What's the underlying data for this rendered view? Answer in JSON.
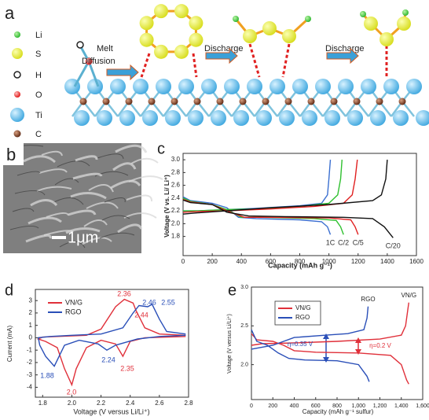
{
  "panel_labels": [
    "a",
    "b",
    "c",
    "d",
    "e"
  ],
  "schematic": {
    "legend": [
      "Li",
      "S",
      "H",
      "O",
      "Ti",
      "C"
    ],
    "steps": [
      "Melt",
      "Diffusion",
      "Discharge",
      "Discharge"
    ]
  },
  "sem_image": {
    "scale_bar": "1μm"
  },
  "chart_data": [
    {
      "type": "line",
      "ylabel": "Voltage (V vs. Li/ Li⁺)",
      "xlabel": "Capacity (mAh g⁻¹)",
      "xlim": [
        0,
        1600
      ],
      "ylim": [
        1.5,
        3.1
      ],
      "xticks": [
        0,
        200,
        400,
        600,
        800,
        1000,
        1200,
        1400,
        1600
      ],
      "yticks": [
        1.8,
        {
          "value": 2,
          "label": "2.0"
        },
        2.2,
        2.4,
        2.6,
        2.8,
        {
          "value": 3,
          "label": "3.0"
        }
      ],
      "inline_labels": true,
      "series": [
        {
          "name": "1C",
          "color": "#3a6fd0",
          "x": [
            0,
            50,
            200,
            300,
            380,
            500,
            800,
            950,
            990,
            1010,
            null,
            0,
            100,
            300,
            500,
            800,
            950,
            990,
            1000,
            1010
          ],
          "values": [
            2.42,
            2.36,
            2.32,
            2.25,
            2.1,
            2.08,
            2.06,
            2.03,
            1.95,
            1.83,
            null,
            2.2,
            2.2,
            2.22,
            2.24,
            2.28,
            2.32,
            2.45,
            2.7,
            3.0
          ]
        },
        {
          "name": "C/2",
          "color": "#2fc02f",
          "x": [
            0,
            50,
            200,
            300,
            400,
            550,
            900,
            1050,
            1080,
            1100,
            null,
            0,
            100,
            300,
            500,
            800,
            1000,
            1060,
            1080,
            1090
          ],
          "values": [
            2.4,
            2.35,
            2.3,
            2.22,
            2.1,
            2.1,
            2.08,
            2.05,
            1.95,
            1.83,
            null,
            2.2,
            2.2,
            2.22,
            2.23,
            2.27,
            2.32,
            2.45,
            2.7,
            3.0
          ]
        },
        {
          "name": "C/5",
          "color": "#e02020",
          "x": [
            0,
            50,
            200,
            300,
            420,
            600,
            1000,
            1150,
            1180,
            1200,
            null,
            0,
            100,
            300,
            600,
            900,
            1100,
            1160,
            1180,
            1195
          ],
          "values": [
            2.38,
            2.34,
            2.3,
            2.2,
            2.1,
            2.1,
            2.09,
            2.06,
            1.95,
            1.83,
            null,
            2.18,
            2.19,
            2.2,
            2.23,
            2.27,
            2.32,
            2.45,
            2.7,
            3.0
          ]
        },
        {
          "name": "C/20",
          "color": "#111111",
          "x": [
            0,
            50,
            200,
            300,
            450,
            700,
            1100,
            1300,
            1380,
            1440,
            null,
            0,
            100,
            300,
            600,
            1000,
            1300,
            1360,
            1390,
            1400
          ],
          "values": [
            2.37,
            2.33,
            2.3,
            2.18,
            2.12,
            2.11,
            2.1,
            2.08,
            1.95,
            1.78,
            null,
            2.15,
            2.17,
            2.2,
            2.25,
            2.3,
            2.36,
            2.45,
            2.7,
            3.0
          ]
        }
      ]
    },
    {
      "type": "line",
      "ylabel": "Current (mA)",
      "xlabel": "Voltage (V versus Li/Li⁺)",
      "xlim": [
        1.75,
        2.8
      ],
      "ylim": [
        -4.8,
        3.9
      ],
      "xticks": [
        1.8,
        {
          "value": 2,
          "label": "2.0"
        },
        2.2,
        2.4,
        2.6,
        2.8
      ],
      "yticks": [
        -4,
        -3,
        -2,
        -1,
        0,
        1,
        2,
        3
      ],
      "legend": "upper left",
      "series": [
        {
          "name": "VN/G",
          "color": "#e0303a",
          "x": [
            2.78,
            2.5,
            2.4,
            2.35,
            2.3,
            2.2,
            2.1,
            2.03,
            2.0,
            1.95,
            1.9,
            1.82,
            1.77,
            1.8,
            1.9,
            2.1,
            2.2,
            2.3,
            2.36,
            2.42,
            2.44,
            2.5,
            2.6,
            2.78
          ],
          "values": [
            0.1,
            0.0,
            -0.3,
            -1.5,
            -0.5,
            -0.2,
            -0.8,
            -2.5,
            -3.8,
            -2.5,
            -0.8,
            -0.3,
            -0.1,
            0.05,
            0.1,
            0.2,
            0.7,
            2.5,
            3.1,
            2.8,
            2.2,
            0.8,
            0.3,
            0.2
          ]
        },
        {
          "name": "RGO",
          "color": "#2a4fb8",
          "x": [
            2.78,
            2.6,
            2.45,
            2.3,
            2.24,
            2.18,
            2.05,
            1.95,
            1.88,
            1.82,
            1.78,
            1.77,
            1.85,
            2.0,
            2.2,
            2.35,
            2.42,
            2.46,
            2.52,
            2.55,
            2.6,
            2.65,
            2.78
          ],
          "values": [
            0.2,
            0.1,
            -0.1,
            -0.6,
            -1.0,
            -0.5,
            -0.2,
            -0.6,
            -2.3,
            -1.5,
            -0.6,
            0.0,
            0.1,
            0.2,
            0.3,
            0.8,
            2.0,
            2.6,
            2.5,
            2.7,
            1.5,
            0.5,
            0.3
          ]
        }
      ],
      "annotations": [
        {
          "text": "2.36",
          "color": "#e0303a"
        },
        {
          "text": "2.44",
          "color": "#e0303a"
        },
        {
          "text": "2.46",
          "color": "#2a4fb8"
        },
        {
          "text": "2.55",
          "color": "#2a4fb8"
        },
        {
          "text": "1.88",
          "color": "#2a4fb8"
        },
        {
          "text": "2.24",
          "color": "#2a4fb8"
        },
        {
          "text": "2.35",
          "color": "#e0303a"
        },
        {
          "text": "2.0",
          "color": "#e0303a"
        }
      ]
    },
    {
      "type": "line",
      "ylabel": "Voltage (V versus Li/Li⁺)",
      "xlabel": "Capacity (mAh g⁻¹ sulfur)",
      "xlim": [
        0,
        1600
      ],
      "ylim": [
        1.55,
        3.0
      ],
      "xticks": [
        0,
        200,
        400,
        600,
        800,
        {
          "value": 1000,
          "label": "1,000"
        },
        {
          "value": 1200,
          "label": "1,200"
        },
        {
          "value": 1400,
          "label": "1,400"
        },
        {
          "value": 1600,
          "label": "1,600"
        }
      ],
      "yticks": [
        {
          "value": 2,
          "label": "2.0"
        },
        2.5,
        {
          "value": 3,
          "label": "3.0"
        }
      ],
      "legend": "upper left",
      "inline_labels": true,
      "series": [
        {
          "name": "VN/G",
          "color": "#e0303a",
          "x": [
            0,
            50,
            200,
            300,
            400,
            600,
            1000,
            1300,
            1400,
            1450,
            1470,
            null,
            0,
            100,
            400,
            800,
            1200,
            1400,
            1440,
            1460,
            1470
          ],
          "values": [
            2.4,
            2.32,
            2.3,
            2.25,
            2.18,
            2.16,
            2.15,
            2.12,
            2.0,
            1.8,
            1.75,
            null,
            2.25,
            2.27,
            2.28,
            2.3,
            2.33,
            2.38,
            2.5,
            2.7,
            2.8
          ]
        },
        {
          "name": "RGO",
          "color": "#2a4fb8",
          "x": [
            0,
            50,
            150,
            250,
            350,
            500,
            800,
            1000,
            1080,
            1100,
            null,
            0,
            200,
            400,
            700,
            900,
            1050,
            1080,
            1090
          ],
          "values": [
            2.45,
            2.3,
            2.25,
            2.15,
            2.08,
            2.06,
            2.05,
            2.0,
            1.85,
            1.78,
            null,
            2.2,
            2.25,
            2.35,
            2.38,
            2.4,
            2.45,
            2.6,
            2.75
          ]
        }
      ],
      "annotations": [
        {
          "text": "η=0.35 V",
          "color": "#2a4fb8"
        },
        {
          "text": "η=0.2 V",
          "color": "#e0303a"
        }
      ]
    }
  ]
}
